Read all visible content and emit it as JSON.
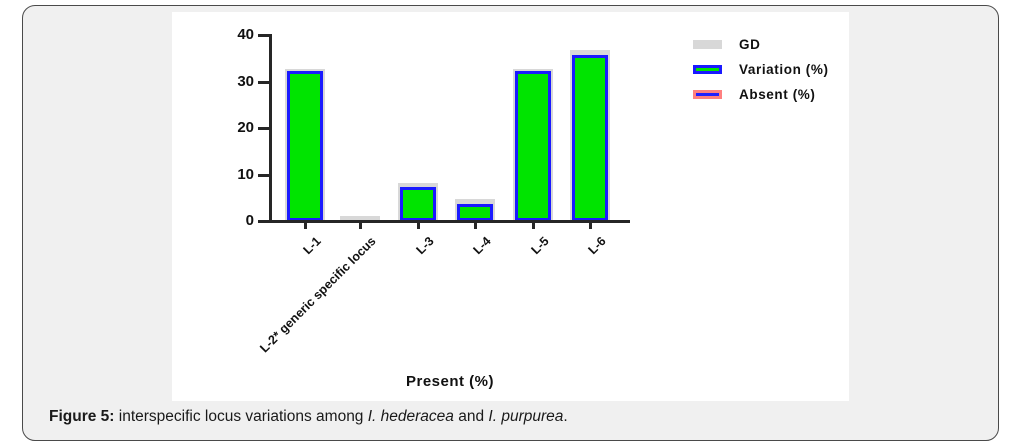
{
  "caption": {
    "label": "Figure 5:",
    "text_before": " interspecific locus variations among ",
    "species_1": "I. hederacea",
    "text_middle": " and ",
    "species_2": "I. purpurea",
    "text_after": "."
  },
  "chart_data": {
    "type": "bar",
    "title": "",
    "xlabel": "Present (%)",
    "ylabel": "",
    "ylim": [
      0,
      40
    ],
    "yticks": [
      0,
      10,
      20,
      30,
      40
    ],
    "grid": false,
    "legend_position": "top-right",
    "categories": [
      "L-1",
      "L-2* generic specific locus",
      "L-3",
      "L-4",
      "L-5",
      "L-6"
    ],
    "series": [
      {
        "name": "GD",
        "color": "#d8d8d8",
        "border_color": null,
        "values": [
          32.5,
          0.9,
          8,
          4.5,
          32.5,
          36.5
        ]
      },
      {
        "name": "Variation (%)",
        "color": "#00e400",
        "border_color": "#1a1aff",
        "values": [
          32,
          0,
          7,
          3.5,
          32,
          35.5
        ]
      },
      {
        "name": "Absent (%)",
        "color": "#2121ff",
        "border_color": "#ff8080",
        "values": [
          0,
          0,
          0,
          0,
          0,
          0
        ]
      }
    ]
  }
}
